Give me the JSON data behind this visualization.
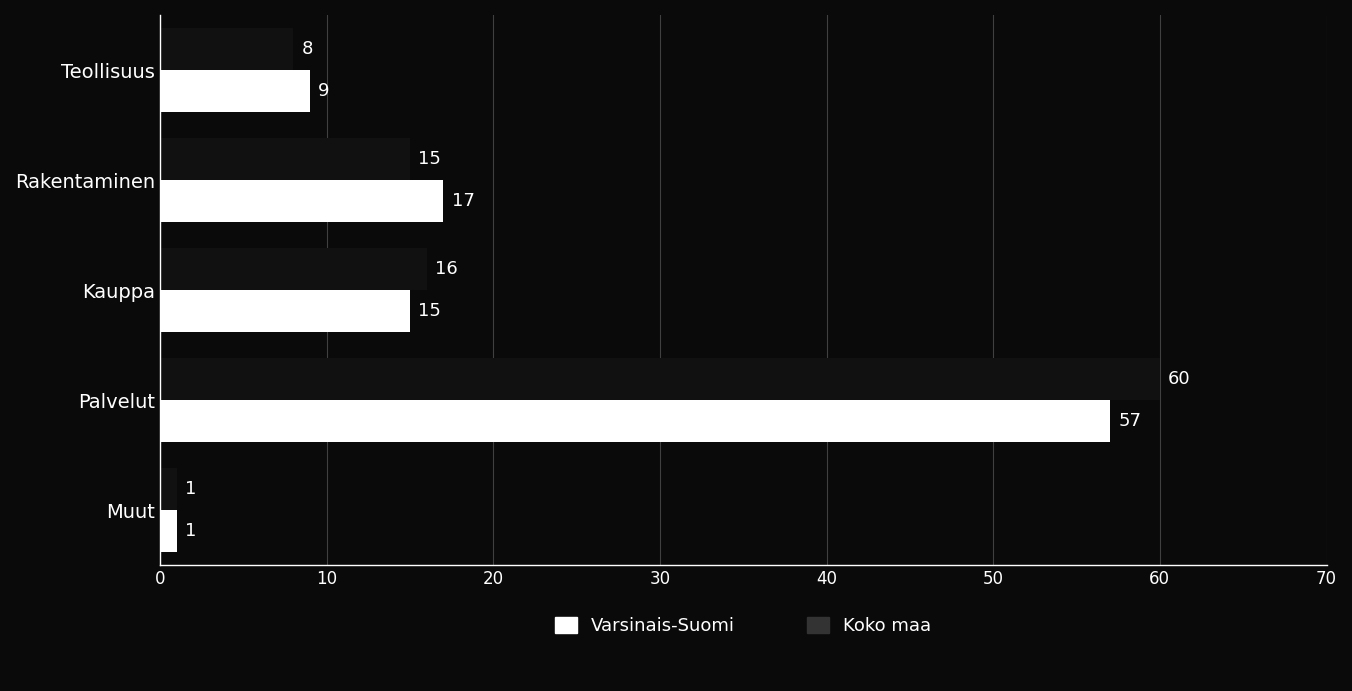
{
  "categories": [
    "Teollisuus",
    "Rakentaminen",
    "Kauppa",
    "Palvelut",
    "Muut"
  ],
  "varsinais_suomi": [
    9,
    17,
    15,
    57,
    1
  ],
  "koko_maa": [
    8,
    15,
    16,
    60,
    1
  ],
  "bar_color_varsinais": "#ffffff",
  "bar_color_koko": "#111111",
  "background_color": "#0a0a0a",
  "text_color": "#ffffff",
  "xlim": [
    0,
    70
  ],
  "xticks": [
    0,
    10,
    20,
    30,
    40,
    50,
    60,
    70
  ],
  "legend_varsinais": "Varsinais-Suomi",
  "legend_koko": "Koko maa",
  "bar_height": 0.38,
  "label_fontsize": 13,
  "tick_fontsize": 12,
  "legend_fontsize": 13,
  "category_fontsize": 14
}
